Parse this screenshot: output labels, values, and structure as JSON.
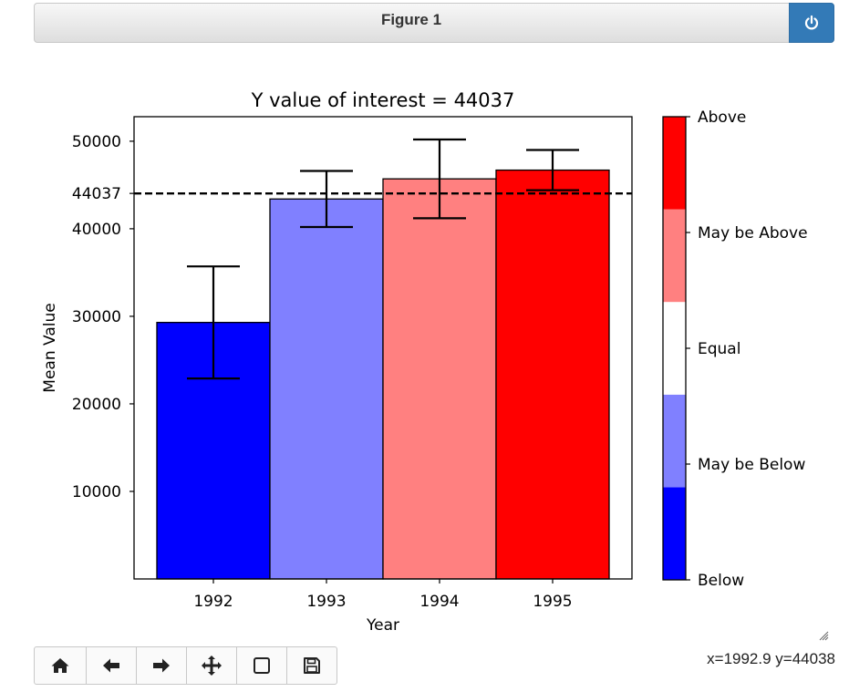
{
  "window": {
    "title": "Figure 1",
    "power_icon": "power-icon"
  },
  "toolbar": {
    "buttons": [
      {
        "name": "home-button",
        "icon": "home-icon"
      },
      {
        "name": "back-button",
        "icon": "arrow-left-icon"
      },
      {
        "name": "forward-button",
        "icon": "arrow-right-icon"
      },
      {
        "name": "pan-button",
        "icon": "move-icon"
      },
      {
        "name": "zoom-button",
        "icon": "square-icon"
      },
      {
        "name": "save-button",
        "icon": "save-icon"
      }
    ]
  },
  "status": {
    "coords": "x=1992.9 y=44038"
  },
  "chart_data": {
    "type": "bar",
    "title": "Y value of interest = 44037",
    "xlabel": "Year",
    "ylabel": "Mean Value",
    "categories": [
      "1992",
      "1993",
      "1994",
      "1995"
    ],
    "values": [
      29300,
      43400,
      45700,
      46700
    ],
    "errors": [
      6400,
      3200,
      4500,
      2300
    ],
    "bar_colors": [
      "#0000ff",
      "#8080ff",
      "#ff8080",
      "#ff0000"
    ],
    "ylim": [
      0,
      50000
    ],
    "y_max_visible": 52800,
    "yticks": [
      10000,
      20000,
      30000,
      40000,
      44037,
      50000
    ],
    "ytick_labels": [
      "10000",
      "20000",
      "30000",
      "40000",
      "44037",
      "50000"
    ],
    "reference_line": {
      "value": 44037,
      "style": "dashed",
      "color": "#000000"
    },
    "colorbar": {
      "colors": [
        "#0000ff",
        "#8080ff",
        "#ffffff",
        "#ff8080",
        "#ff0000"
      ],
      "labels": [
        "Below",
        "May be Below",
        "Equal",
        "May be Above",
        "Above"
      ]
    }
  }
}
